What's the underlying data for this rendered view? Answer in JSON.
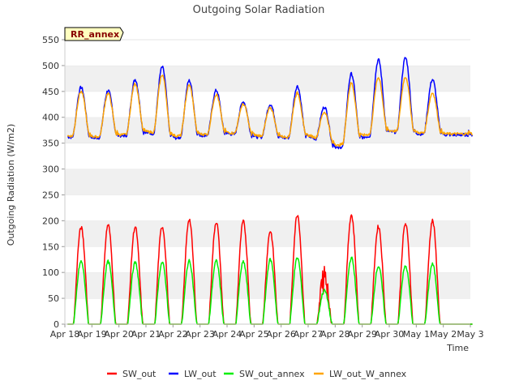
{
  "chart_data": {
    "type": "line",
    "title": "Outgoing Solar Radiation",
    "xlabel": "Time",
    "ylabel": "Outgoing Radiation (W/m2)",
    "annotation": "RR_annex",
    "ylim": [
      0,
      550
    ],
    "y_ticks": [
      0,
      50,
      100,
      150,
      200,
      250,
      300,
      350,
      400,
      450,
      500,
      550
    ],
    "xlim": [
      "2024-04-18",
      "2024-05-03"
    ],
    "x_ticks": [
      "Apr 18",
      "Apr 19",
      "Apr 20",
      "Apr 21",
      "Apr 22",
      "Apr 23",
      "Apr 24",
      "Apr 25",
      "Apr 26",
      "Apr 27",
      "Apr 28",
      "Apr 29",
      "Apr 30",
      "May 1",
      "May 2",
      "May 3"
    ],
    "grid": "horizontal bands",
    "legend_position": "bottom",
    "days": [
      "Apr 18",
      "Apr 19",
      "Apr 20",
      "Apr 21",
      "Apr 22",
      "Apr 23",
      "Apr 24",
      "Apr 25",
      "Apr 26",
      "Apr 27",
      "Apr 28",
      "Apr 29",
      "Apr 30",
      "May 1",
      "May 2"
    ],
    "series": [
      {
        "name": "SW_out",
        "color": "#ff0000",
        "daily_peak": [
          187,
          192,
          188,
          189,
          203,
          198,
          198,
          180,
          212,
          100,
          211,
          189,
          194,
          200
        ]
      },
      {
        "name": "LW_out",
        "color": "#0000ff",
        "night_base": [
          362,
          360,
          364,
          370,
          360,
          365,
          368,
          362,
          360,
          362,
          340,
          362,
          372,
          368,
          366
        ],
        "daily_peak": [
          458,
          452,
          473,
          497,
          471,
          452,
          430,
          425,
          460,
          420,
          484,
          511,
          515,
          473
        ]
      },
      {
        "name": "SW_out_annex",
        "color": "#00ee00",
        "daily_peak": [
          121,
          121,
          119,
          119,
          122,
          122,
          120,
          125,
          128,
          65,
          128,
          112,
          112,
          116
        ]
      },
      {
        "name": "LW_out_W_annex",
        "color": "#ffa500",
        "night_base": [
          364,
          362,
          366,
          372,
          364,
          367,
          370,
          365,
          362,
          364,
          345,
          366,
          374,
          370,
          368
        ],
        "daily_peak": [
          450,
          446,
          465,
          482,
          462,
          444,
          425,
          418,
          447,
          410,
          466,
          477,
          478,
          447
        ]
      }
    ]
  }
}
